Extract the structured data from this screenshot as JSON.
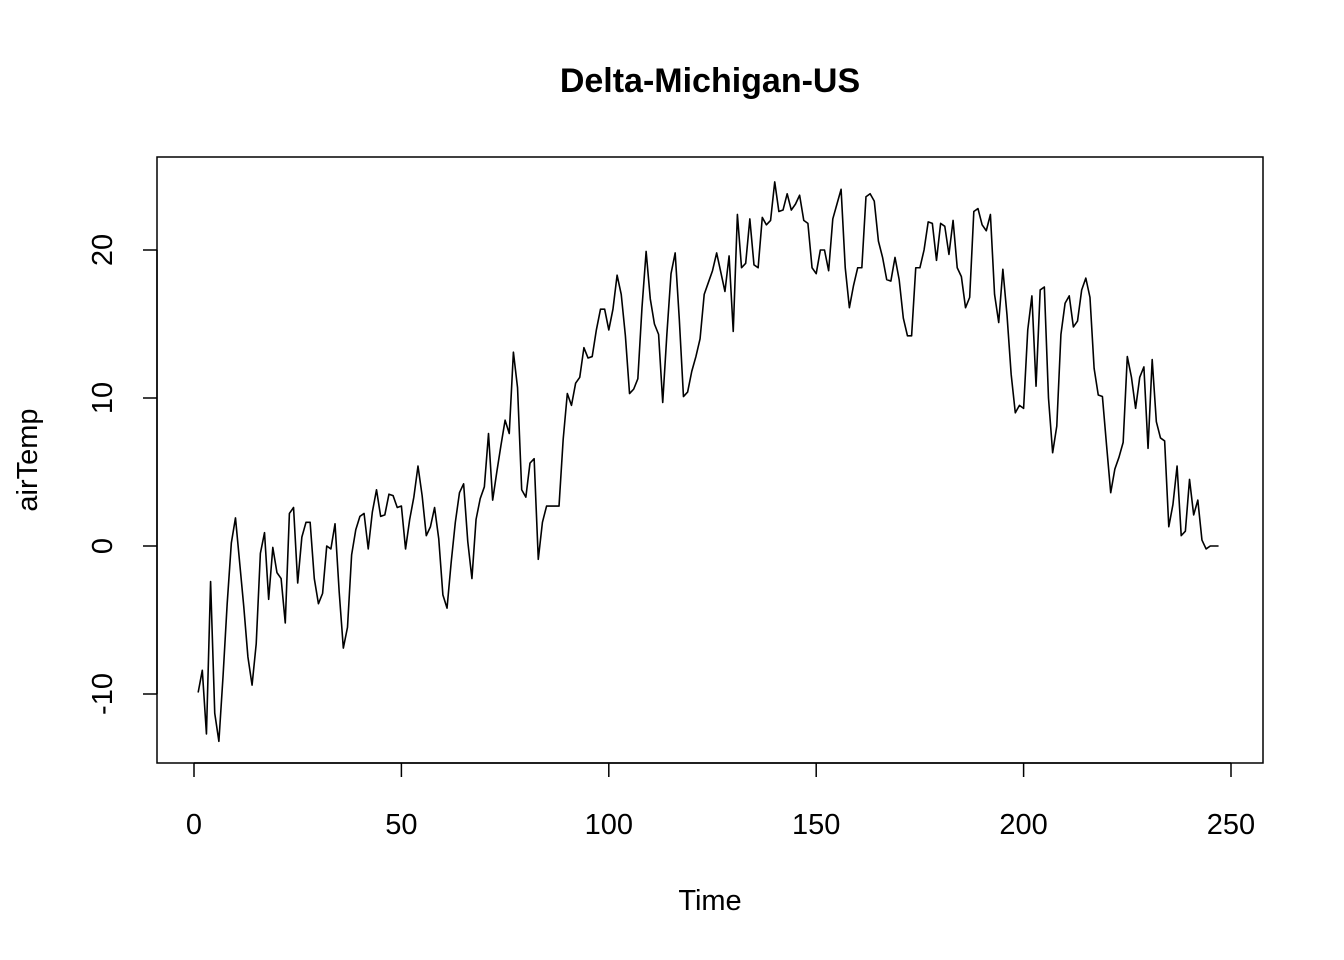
{
  "chart_data": {
    "type": "line",
    "title": "Delta-Michigan-US",
    "xlabel": "Time",
    "ylabel": "airTemp",
    "xlim": [
      0,
      250
    ],
    "ylim": [
      -15,
      25
    ],
    "x_ticks": [
      0,
      50,
      100,
      150,
      200,
      250
    ],
    "x_tick_labels": [
      "0",
      "50",
      "100",
      "150",
      "200",
      "250"
    ],
    "y_ticks": [
      -10,
      0,
      10,
      20
    ],
    "y_tick_labels": [
      "-10",
      "0",
      "10",
      "20"
    ],
    "grid": false,
    "legend": "none",
    "series": [
      {
        "color": "#000000",
        "x_start": 1,
        "x_step": 1,
        "values": [
          -9.9,
          -8.4,
          -12.7,
          -2.4,
          -11.3,
          -13.2,
          -8.8,
          -3.9,
          0.2,
          1.9,
          -1.1,
          -4.1,
          -7.5,
          -9.4,
          -6.6,
          -0.5,
          0.9,
          -3.6,
          -0.1,
          -1.8,
          -2.2,
          -5.2,
          2.2,
          2.6,
          -2.5,
          0.6,
          1.6,
          1.6,
          -2.2,
          -3.9,
          -3.2,
          0,
          -0.2,
          1.5,
          -3.1,
          -6.9,
          -5.5,
          -0.6,
          1.1,
          2.0,
          2.2,
          -0.2,
          2.3,
          3.8,
          2.0,
          2.1,
          3.5,
          3.4,
          2.6,
          2.7,
          -0.2,
          1.8,
          3.3,
          5.4,
          3.4,
          0.7,
          1.3,
          2.6,
          0.5,
          -3.3,
          -4.2,
          -1.1,
          1.6,
          3.6,
          4.2,
          0.3,
          -2.2,
          1.8,
          3.2,
          4.0,
          7.6,
          3.1,
          5.0,
          6.8,
          8.5,
          7.6,
          13.1,
          10.7,
          3.8,
          3.3,
          5.6,
          5.9,
          -0.9,
          1.6,
          2.7,
          2.7,
          2.7,
          2.7,
          7.2,
          10.3,
          9.5,
          11.0,
          11.4,
          13.4,
          12.7,
          12.8,
          14.6,
          16.0,
          16.0,
          14.6,
          16.0,
          18.3,
          17.0,
          14.2,
          10.3,
          10.6,
          11.3,
          16.1,
          19.9,
          16.7,
          15.0,
          14.3,
          9.7,
          14.3,
          18.4,
          19.8,
          15.3,
          10.1,
          10.4,
          11.8,
          12.8,
          14.0,
          17.0,
          17.8,
          18.6,
          19.8,
          18.5,
          17.2,
          19.6,
          14.5,
          22.4,
          18.8,
          19.1,
          22.1,
          19.0,
          18.8,
          22.2,
          21.7,
          22.0,
          24.6,
          22.6,
          22.7,
          23.8,
          22.7,
          23.1,
          23.7,
          22.0,
          21.8,
          18.8,
          18.4,
          20.0,
          20.0,
          18.6,
          22.1,
          23.1,
          24.1,
          18.8,
          16.1,
          17.6,
          18.8,
          18.8,
          23.6,
          23.8,
          23.3,
          20.6,
          19.5,
          18.0,
          17.9,
          19.5,
          18.0,
          15.4,
          14.2,
          14.2,
          18.8,
          18.8,
          20.0,
          21.9,
          21.8,
          19.3,
          21.8,
          21.6,
          19.7,
          22.0,
          18.8,
          18.2,
          16.1,
          16.8,
          22.6,
          22.8,
          21.7,
          21.3,
          22.4,
          17.0,
          15.1,
          18.7,
          15.6,
          11.6,
          9.0,
          9.5,
          9.3,
          14.6,
          16.9,
          10.8,
          17.3,
          17.5,
          10.0,
          6.3,
          8.1,
          14.3,
          16.4,
          16.9,
          14.8,
          15.2,
          17.3,
          18.1,
          16.8,
          12.0,
          10.2,
          10.1,
          6.8,
          3.6,
          5.2,
          6.0,
          7.0,
          12.8,
          11.4,
          9.3,
          11.4,
          12.1,
          6.6,
          12.6,
          8.4,
          7.3,
          7.1,
          1.3,
          2.8,
          5.4,
          0.7,
          1.0,
          4.5,
          2.1,
          3.1,
          0.4,
          -0.2,
          0,
          0,
          0
        ]
      }
    ]
  }
}
